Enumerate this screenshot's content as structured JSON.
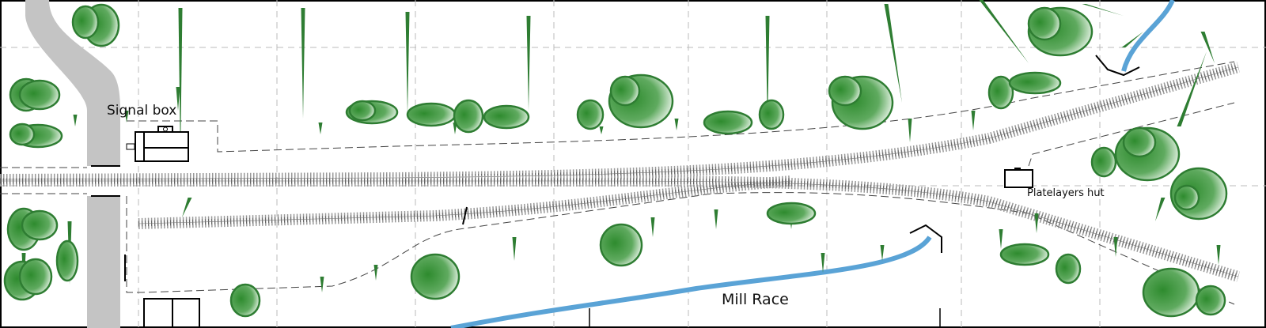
{
  "labels": {
    "signal_box": "Signal box",
    "platelayers_hut": "Platelayers hut",
    "mill_race": "Mill Race"
  },
  "colors": {
    "tree": "#2e7d32",
    "water": "#5aa3d6",
    "road": "#c0c0c0",
    "track": "#888888"
  }
}
